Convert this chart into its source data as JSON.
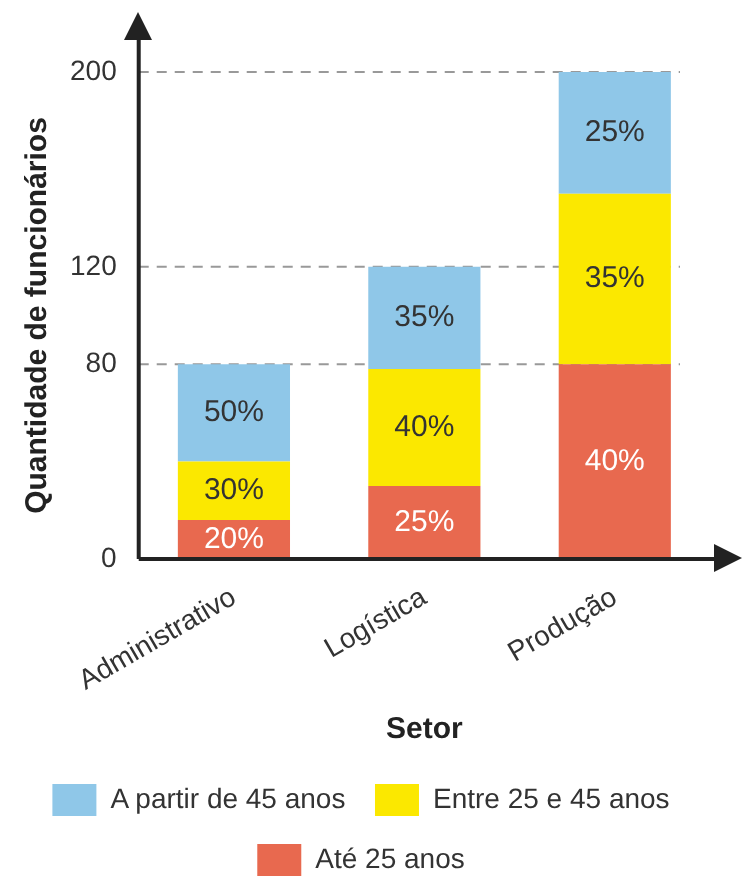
{
  "chart_data": {
    "type": "bar",
    "stacked": true,
    "xlabel": "Setor",
    "ylabel": "Quantidade de funcionários",
    "categories": [
      "Administrativo",
      "Logística",
      "Produção"
    ],
    "series": [
      {
        "name": "Até 25 anos",
        "color": "#e8694f",
        "values": [
          16,
          30,
          80
        ]
      },
      {
        "name": "Entre 25 e 45 anos",
        "color": "#fbe800",
        "values": [
          24,
          48,
          70
        ]
      },
      {
        "name": "A partir de 45 anos",
        "color": "#8fc7e8",
        "values": [
          40,
          42,
          50
        ]
      }
    ],
    "annotations": [
      "20%",
      "30%",
      "50%",
      "25%",
      "40%",
      "35%",
      "40%",
      "35%",
      "25%"
    ],
    "ylim": [
      0,
      200
    ],
    "yticks": [
      0,
      80,
      120,
      200
    ],
    "grid": "y",
    "legend": "bottom"
  }
}
